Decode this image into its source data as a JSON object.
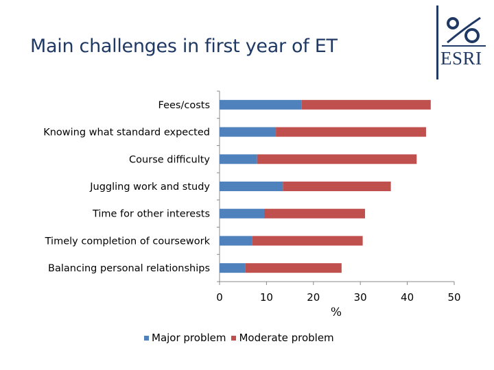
{
  "slide": {
    "title": "Main challenges in first year of ET",
    "logo_text": "ESRI"
  },
  "colors": {
    "title": "#1f3864",
    "major": "#4f81bd",
    "moderate": "#c0504d",
    "axis": "#888888"
  },
  "chart_data": {
    "type": "bar",
    "orientation": "horizontal",
    "stacked": true,
    "categories": [
      "Fees/costs",
      "Knowing what standard expected",
      "Course difficulty",
      "Juggling work and study",
      "Time for other interests",
      "Timely completion of coursework",
      "Balancing personal relationships"
    ],
    "series": [
      {
        "name": "Major problem",
        "values": [
          17.5,
          12,
          8,
          13.5,
          9.5,
          7,
          5.5
        ]
      },
      {
        "name": "Moderate problem",
        "values": [
          27.5,
          32,
          34,
          23,
          21.5,
          23.5,
          20.5
        ]
      }
    ],
    "xlabel": "%",
    "xlim": [
      0,
      50
    ],
    "xticks": [
      "0",
      "10",
      "20",
      "30",
      "40",
      "50"
    ],
    "grid": false,
    "legend_position": "bottom"
  }
}
